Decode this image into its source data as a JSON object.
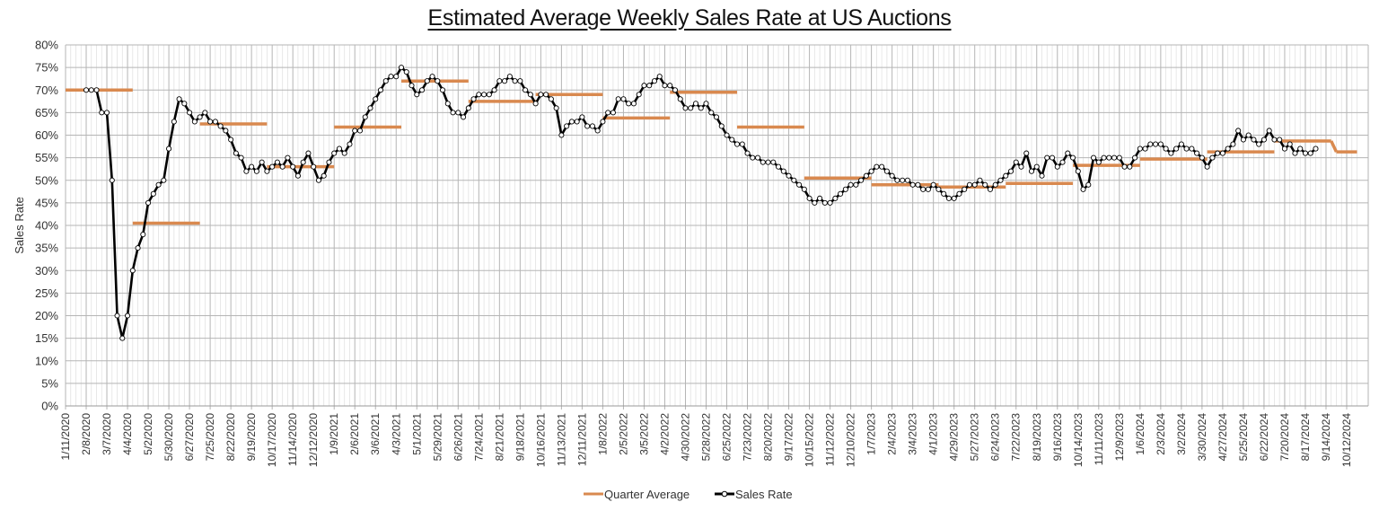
{
  "chart_data": {
    "type": "line",
    "title": "Estimated Average Weekly Sales Rate at US Auctions",
    "xlabel": "",
    "ylabel": "Sales Rate",
    "ylim": [
      0,
      80
    ],
    "y_tick_step": 5,
    "y_tick_labels": [
      "0%",
      "5%",
      "10%",
      "15%",
      "20%",
      "25%",
      "30%",
      "35%",
      "40%",
      "45%",
      "50%",
      "55%",
      "60%",
      "65%",
      "70%",
      "75%",
      "80%"
    ],
    "grid": true,
    "legend_position": "bottom-center",
    "x_start": "1/11/2020",
    "x_step_days": 7,
    "x_total_weeks": 250,
    "x_tick_every_weeks": 4,
    "x_tick_labels": [
      "1/11/2020",
      "2/8/2020",
      "3/7/2020",
      "4/4/2020",
      "5/2/2020",
      "5/30/2020",
      "6/27/2020",
      "7/25/2020",
      "8/22/2020",
      "9/19/2020",
      "10/17/2020",
      "11/14/2020",
      "12/12/2020",
      "1/9/2021",
      "2/6/2021",
      "3/6/2021",
      "4/3/2021",
      "5/1/2021",
      "5/29/2021",
      "6/26/2021",
      "7/24/2021",
      "8/21/2021",
      "9/18/2021",
      "10/16/2021",
      "11/13/2021",
      "12/11/2021",
      "1/8/2022",
      "2/5/2022",
      "3/5/2022",
      "4/2/2022",
      "4/30/2022",
      "5/28/2022",
      "6/25/2022",
      "7/23/2022",
      "8/20/2022",
      "9/17/2022",
      "10/15/2022",
      "11/12/2022",
      "12/10/2022",
      "1/7/2023",
      "2/4/2023",
      "3/4/2023",
      "4/1/2023",
      "4/29/2023",
      "5/27/2023",
      "6/24/2023",
      "7/22/2023",
      "8/19/2023",
      "9/16/2023",
      "10/14/2023",
      "11/11/2023",
      "12/9/2023",
      "1/6/2024",
      "2/3/2024",
      "3/2/2024",
      "3/30/2024",
      "4/27/2024",
      "5/25/2024",
      "6/22/2024",
      "7/20/2024",
      "8/17/2024",
      "9/14/2024",
      "10/12/2024"
    ],
    "series": [
      {
        "name": "Quarter Average",
        "color": "#D9894F",
        "style": "step",
        "segments": [
          {
            "start_week": 0,
            "end_week": 13,
            "value": 70
          },
          {
            "start_week": 13,
            "end_week": 26,
            "value": 40.5
          },
          {
            "start_week": 26,
            "end_week": 39,
            "value": 62.5
          },
          {
            "start_week": 39,
            "end_week": 52,
            "value": 53
          },
          {
            "start_week": 52,
            "end_week": 65,
            "value": 61.8
          },
          {
            "start_week": 65,
            "end_week": 78,
            "value": 72
          },
          {
            "start_week": 78,
            "end_week": 91,
            "value": 67.5
          },
          {
            "start_week": 91,
            "end_week": 104,
            "value": 69
          },
          {
            "start_week": 104,
            "end_week": 117,
            "value": 63.8
          },
          {
            "start_week": 117,
            "end_week": 130,
            "value": 69.5
          },
          {
            "start_week": 130,
            "end_week": 143,
            "value": 61.8
          },
          {
            "start_week": 143,
            "end_week": 156,
            "value": 50.5
          },
          {
            "start_week": 156,
            "end_week": 169,
            "value": 49
          },
          {
            "start_week": 169,
            "end_week": 182,
            "value": 48.5
          },
          {
            "start_week": 182,
            "end_week": 195,
            "value": 49.3
          },
          {
            "start_week": 195,
            "end_week": 208,
            "value": 53.3
          },
          {
            "start_week": 208,
            "end_week": 221,
            "value": 54.7
          },
          {
            "start_week": 221,
            "end_week": 234,
            "value": 56.3
          },
          {
            "start_week": 234,
            "end_week": 245,
            "value": 58.7
          },
          {
            "start_week": 246,
            "end_week": 250,
            "value": 56.3
          }
        ]
      },
      {
        "name": "Sales Rate",
        "color": "#000000",
        "marker": "circle-white",
        "start_week": 4,
        "values": [
          70,
          70,
          70,
          65,
          65,
          50,
          20,
          15,
          20,
          30,
          35,
          38,
          45,
          47,
          49,
          50,
          57,
          63,
          68,
          67,
          65,
          63,
          64,
          65,
          63,
          63,
          62,
          61,
          59,
          56,
          55,
          52,
          53,
          52,
          54,
          52,
          53,
          54,
          53,
          55,
          53,
          51,
          54,
          56,
          53,
          50,
          51,
          54,
          56,
          57,
          56,
          58,
          61,
          61,
          64,
          66,
          68,
          70,
          72,
          73,
          73,
          75,
          74,
          71,
          69,
          70,
          72,
          73,
          72,
          70,
          67,
          65,
          65,
          64,
          66,
          68,
          69,
          69,
          69,
          70,
          72,
          72,
          73,
          72,
          72,
          70,
          69,
          67,
          69,
          69,
          68,
          66,
          60,
          62,
          63,
          63,
          64,
          62,
          62,
          61,
          63,
          65,
          65,
          68,
          68,
          67,
          67,
          69,
          71,
          71,
          72,
          73,
          71,
          71,
          70,
          68,
          66,
          66,
          67,
          66,
          67,
          65,
          64,
          62,
          60,
          59,
          58,
          58,
          56,
          55,
          55,
          54,
          54,
          54,
          53,
          52,
          51,
          50,
          49,
          48,
          46,
          45,
          46,
          45,
          45,
          46,
          47,
          48,
          49,
          49,
          50,
          51,
          52,
          53,
          53,
          52,
          51,
          50,
          50,
          50,
          49,
          49,
          48,
          48,
          49,
          48,
          47,
          46,
          46,
          47,
          48,
          49,
          49,
          50,
          49,
          48,
          49,
          50,
          51,
          52,
          54,
          53,
          56,
          52,
          53,
          51,
          55,
          55,
          53,
          54,
          56,
          55,
          52,
          48,
          49,
          55,
          54,
          55,
          55,
          55,
          55,
          53,
          53,
          55,
          57,
          57,
          58,
          58,
          58,
          57,
          56,
          57,
          58,
          57,
          57,
          56,
          55,
          53,
          55,
          56,
          56,
          57,
          58,
          61,
          59,
          60,
          59,
          58,
          59,
          61,
          59,
          59,
          57,
          58,
          56,
          57,
          56,
          56,
          57
        ]
      }
    ]
  },
  "legend": {
    "items": [
      {
        "label": "Quarter Average",
        "color": "#D9894F"
      },
      {
        "label": "Sales Rate",
        "color": "#000000"
      }
    ]
  }
}
